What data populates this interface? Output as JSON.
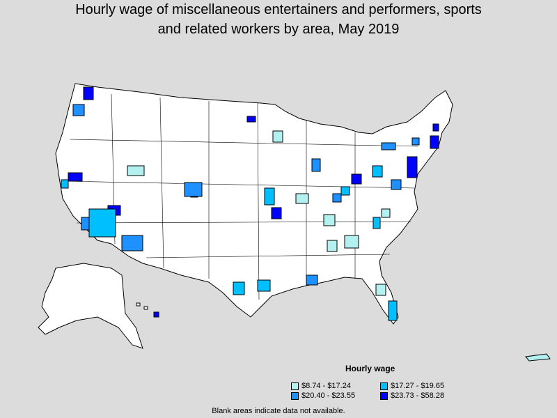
{
  "title_line1": "Hourly wage of miscellaneous entertainers and performers, sports",
  "title_line2": "and related workers by area, May 2019",
  "legend": {
    "title": "Hourly wage",
    "items": [
      {
        "label": "$8.74 - $17.24",
        "color": "#b3f0f0"
      },
      {
        "label": "$17.27 - $19.65",
        "color": "#00bfff"
      },
      {
        "label": "$20.40 - $23.55",
        "color": "#1e90ff"
      },
      {
        "label": "$23.73 - $58.28",
        "color": "#0000ff"
      }
    ]
  },
  "footnote": "Blank areas indicate data not available.",
  "colors": {
    "background": "#dcdcdc",
    "land": "#ffffff",
    "border": "#000000"
  }
}
